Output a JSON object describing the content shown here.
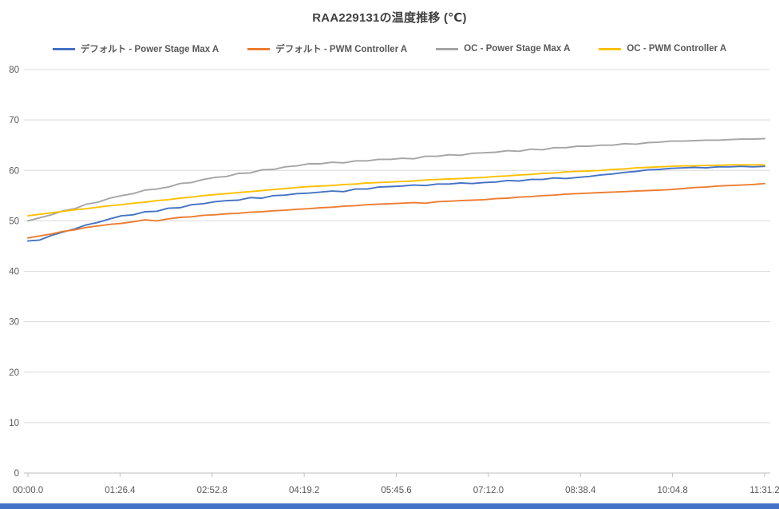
{
  "accent_bar_color": "#4472C4",
  "chart_data": {
    "type": "line",
    "title": "RAA229131の温度推移 (℃)",
    "xlabel": "",
    "ylabel": "",
    "ylim": [
      0,
      80
    ],
    "y_ticks": [
      0,
      10,
      20,
      30,
      40,
      50,
      60,
      70,
      80
    ],
    "x_tick_labels": [
      "00:00.0",
      "01:26.4",
      "02:52.8",
      "04:19.2",
      "05:45.6",
      "07:12.0",
      "08:38.4",
      "10:04.8",
      "11:31.2"
    ],
    "x_total_seconds": 691.2,
    "x_tick_interval_seconds": 86.4,
    "grid": "horizontal",
    "legend_position": "top",
    "colors": {
      "grid": "#D9D9D9",
      "axis": "#BFBFBF",
      "tick_text": "#595959"
    },
    "series": [
      {
        "name": "デフォルト - Power Stage Max A",
        "color": "#4472C4",
        "values": [
          46.0,
          46.2,
          47.1,
          47.8,
          48.4,
          49.2,
          49.7,
          50.4,
          51.0,
          51.2,
          51.8,
          51.9,
          52.5,
          52.6,
          53.2,
          53.4,
          53.8,
          54.0,
          54.1,
          54.6,
          54.5,
          55.0,
          55.1,
          55.4,
          55.5,
          55.7,
          55.9,
          55.8,
          56.3,
          56.3,
          56.7,
          56.8,
          56.9,
          57.1,
          57.0,
          57.3,
          57.3,
          57.5,
          57.4,
          57.6,
          57.7,
          58.0,
          57.9,
          58.2,
          58.2,
          58.5,
          58.4,
          58.6,
          58.8,
          59.1,
          59.3,
          59.6,
          59.8,
          60.1,
          60.2,
          60.4,
          60.5,
          60.6,
          60.5,
          60.7,
          60.7,
          60.8,
          60.7,
          60.8
        ]
      },
      {
        "name": "デフォルト - PWM Controller A",
        "color": "#ED7D31",
        "values": [
          46.6,
          47.0,
          47.4,
          47.9,
          48.2,
          48.7,
          49.0,
          49.3,
          49.5,
          49.8,
          50.2,
          50.0,
          50.4,
          50.7,
          50.8,
          51.1,
          51.2,
          51.4,
          51.5,
          51.7,
          51.8,
          52.0,
          52.1,
          52.3,
          52.4,
          52.6,
          52.7,
          52.9,
          53.0,
          53.2,
          53.3,
          53.4,
          53.5,
          53.6,
          53.5,
          53.8,
          53.9,
          54.0,
          54.1,
          54.2,
          54.4,
          54.5,
          54.7,
          54.8,
          55.0,
          55.1,
          55.3,
          55.4,
          55.5,
          55.6,
          55.7,
          55.8,
          55.9,
          56.0,
          56.1,
          56.2,
          56.4,
          56.6,
          56.7,
          56.9,
          57.0,
          57.1,
          57.2,
          57.4
        ]
      },
      {
        "name": "OC - Power Stage Max A",
        "color": "#A5A5A5",
        "values": [
          50.0,
          50.6,
          51.2,
          52.0,
          52.4,
          53.3,
          53.7,
          54.5,
          55.0,
          55.4,
          56.1,
          56.3,
          56.7,
          57.4,
          57.6,
          58.2,
          58.6,
          58.8,
          59.4,
          59.5,
          60.1,
          60.2,
          60.7,
          60.9,
          61.3,
          61.3,
          61.6,
          61.5,
          61.9,
          61.9,
          62.2,
          62.2,
          62.4,
          62.3,
          62.8,
          62.8,
          63.1,
          63.0,
          63.4,
          63.5,
          63.6,
          63.9,
          63.8,
          64.2,
          64.1,
          64.5,
          64.5,
          64.8,
          64.8,
          65.0,
          65.0,
          65.3,
          65.2,
          65.5,
          65.6,
          65.8,
          65.8,
          65.9,
          66.0,
          66.0,
          66.1,
          66.2,
          66.2,
          66.3
        ]
      },
      {
        "name": "OC - PWM Controller A",
        "color": "#FFC000",
        "values": [
          51.0,
          51.3,
          51.6,
          51.9,
          52.2,
          52.4,
          52.7,
          53.0,
          53.2,
          53.5,
          53.7,
          54.0,
          54.2,
          54.5,
          54.7,
          55.0,
          55.2,
          55.4,
          55.6,
          55.8,
          56.0,
          56.2,
          56.4,
          56.6,
          56.8,
          56.9,
          57.0,
          57.2,
          57.3,
          57.5,
          57.6,
          57.7,
          57.8,
          57.9,
          58.1,
          58.2,
          58.3,
          58.4,
          58.5,
          58.6,
          58.8,
          58.9,
          59.1,
          59.2,
          59.4,
          59.5,
          59.7,
          59.8,
          59.9,
          60.0,
          60.2,
          60.3,
          60.5,
          60.6,
          60.7,
          60.8,
          60.9,
          60.9,
          61.0,
          61.0,
          61.1,
          61.1,
          61.1,
          61.1
        ]
      }
    ]
  }
}
